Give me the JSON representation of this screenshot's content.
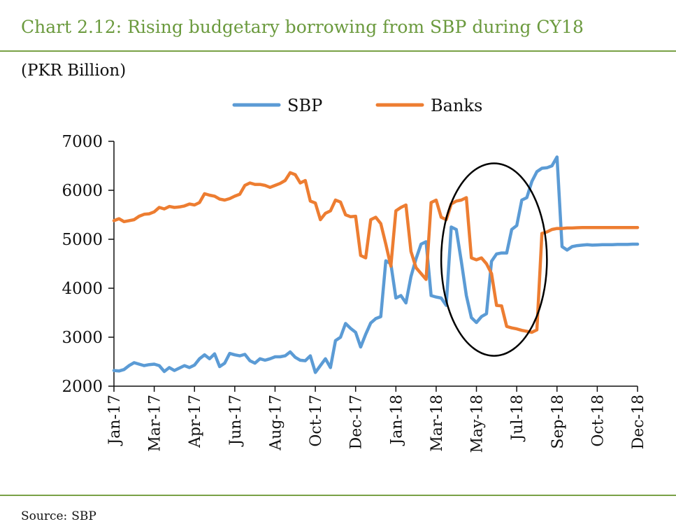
{
  "header": {
    "title": "Chart 2.12: Rising budgetary borrowing from SBP during CY18",
    "unit": "(PKR Billion)"
  },
  "footer": {
    "source_label": "Source:",
    "source_value": "SBP"
  },
  "chart_data": {
    "type": "line",
    "title": "Chart 2.12: Rising budgetary borrowing from SBP during CY18",
    "ylabel": "(PKR Billion)",
    "xlabel": "",
    "ylim": [
      2000,
      7000
    ],
    "yticks": [
      2000,
      3000,
      4000,
      5000,
      6000,
      7000
    ],
    "grid": false,
    "legend_position": "top-center",
    "x_tick_labels": [
      "Jan-17",
      "Mar-17",
      "Apr-17",
      "Jun-17",
      "Aug-17",
      "Oct-17",
      "Dec-17",
      "Jan-18",
      "Mar-18",
      "May-18",
      "Jul-18",
      "Sep-18",
      "Oct-18",
      "Dec-18"
    ],
    "x": [
      "2017-01-01",
      "2017-01-08",
      "2017-01-15",
      "2017-01-22",
      "2017-01-29",
      "2017-02-05",
      "2017-02-12",
      "2017-02-19",
      "2017-02-26",
      "2017-03-05",
      "2017-03-12",
      "2017-03-19",
      "2017-03-26",
      "2017-04-02",
      "2017-04-09",
      "2017-04-16",
      "2017-04-23",
      "2017-04-30",
      "2017-05-07",
      "2017-05-14",
      "2017-05-21",
      "2017-05-28",
      "2017-06-04",
      "2017-06-11",
      "2017-06-18",
      "2017-06-25",
      "2017-07-02",
      "2017-07-09",
      "2017-07-16",
      "2017-07-23",
      "2017-07-30",
      "2017-08-06",
      "2017-08-13",
      "2017-08-20",
      "2017-08-27",
      "2017-09-03",
      "2017-09-10",
      "2017-09-17",
      "2017-09-24",
      "2017-10-01",
      "2017-10-08",
      "2017-10-15",
      "2017-10-22",
      "2017-10-29",
      "2017-11-05",
      "2017-11-12",
      "2017-11-19",
      "2017-11-26",
      "2017-12-03",
      "2017-12-10",
      "2017-12-17",
      "2017-12-24",
      "2017-12-31",
      "2018-01-07",
      "2018-01-14",
      "2018-01-21",
      "2018-01-28",
      "2018-02-04",
      "2018-02-11",
      "2018-02-18",
      "2018-02-25",
      "2018-03-04",
      "2018-03-11",
      "2018-03-18",
      "2018-03-25",
      "2018-04-01",
      "2018-04-08",
      "2018-04-15",
      "2018-04-22",
      "2018-04-29",
      "2018-05-06",
      "2018-05-13",
      "2018-05-20",
      "2018-05-27",
      "2018-06-03",
      "2018-06-10",
      "2018-06-17",
      "2018-06-24",
      "2018-07-01",
      "2018-07-08",
      "2018-07-15",
      "2018-07-22",
      "2018-07-29",
      "2018-08-05",
      "2018-08-12",
      "2018-08-19",
      "2018-08-26",
      "2018-09-02",
      "2018-09-09",
      "2018-09-16",
      "2018-09-23",
      "2018-09-30",
      "2018-10-07",
      "2018-10-14",
      "2018-10-21",
      "2018-10-28",
      "2018-11-04",
      "2018-11-11",
      "2018-11-18",
      "2018-11-25",
      "2018-12-02",
      "2018-12-09",
      "2018-12-16",
      "2018-12-23",
      "2018-12-30"
    ],
    "series": [
      {
        "name": "SBP",
        "color": "#5b9bd5",
        "values": [
          2320,
          2310,
          2340,
          2420,
          2480,
          2450,
          2420,
          2440,
          2450,
          2420,
          2300,
          2380,
          2320,
          2370,
          2420,
          2380,
          2430,
          2560,
          2640,
          2560,
          2660,
          2400,
          2470,
          2670,
          2640,
          2620,
          2650,
          2520,
          2470,
          2560,
          2530,
          2560,
          2600,
          2600,
          2620,
          2700,
          2590,
          2530,
          2520,
          2620,
          2280,
          2420,
          2560,
          2380,
          2930,
          3000,
          3280,
          3180,
          3100,
          2800,
          3060,
          3290,
          3380,
          3420,
          4560,
          4500,
          3800,
          3850,
          3700,
          4240,
          4600,
          4900,
          4950,
          3850,
          3820,
          3800,
          3650,
          5250,
          5200,
          4550,
          3850,
          3400,
          3300,
          3420,
          3480,
          4550,
          4700,
          4720,
          4720,
          5200,
          5280,
          5800,
          5850,
          6180,
          6380,
          6450,
          6460,
          6500,
          6680,
          4850,
          4780,
          4850,
          4870,
          4880,
          4890,
          4880,
          4885,
          4890,
          4890,
          4890,
          4895,
          4895,
          4895,
          4900,
          4900
        ]
      },
      {
        "name": "Banks",
        "color": "#ed7d31",
        "values": [
          5380,
          5420,
          5360,
          5380,
          5400,
          5470,
          5510,
          5520,
          5560,
          5650,
          5620,
          5670,
          5650,
          5660,
          5680,
          5720,
          5700,
          5750,
          5930,
          5900,
          5880,
          5820,
          5800,
          5830,
          5880,
          5920,
          6100,
          6150,
          6120,
          6120,
          6100,
          6060,
          6100,
          6140,
          6200,
          6360,
          6320,
          6150,
          6200,
          5780,
          5740,
          5400,
          5530,
          5580,
          5800,
          5760,
          5500,
          5460,
          5470,
          4670,
          4620,
          5400,
          5450,
          5320,
          4900,
          4450,
          5580,
          5650,
          5700,
          4750,
          4420,
          4300,
          4180,
          5750,
          5800,
          5450,
          5400,
          5720,
          5780,
          5800,
          5850,
          4620,
          4580,
          4620,
          4500,
          4300,
          3650,
          3640,
          3220,
          3190,
          3170,
          3140,
          3120,
          3100,
          3150,
          5120,
          5150,
          5200,
          5220,
          5220,
          5230,
          5230,
          5235,
          5240,
          5240,
          5240,
          5240,
          5240,
          5240,
          5240,
          5240,
          5240,
          5240,
          5240,
          5240
        ]
      }
    ],
    "annotations": [
      {
        "type": "ellipse",
        "label": "",
        "x_range": [
          "2018-04-01",
          "2018-08-26"
        ],
        "y_range": [
          2620,
          6550
        ]
      }
    ]
  }
}
